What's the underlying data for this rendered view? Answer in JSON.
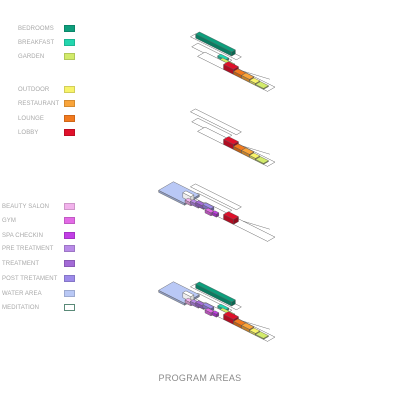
{
  "legend": [
    {
      "key": "bedrooms",
      "label": "BEDROOMS",
      "color": "#0e9e7c"
    },
    {
      "key": "breakfast",
      "label": "BREAKFAST",
      "color": "#23d6ae"
    },
    {
      "key": "garden",
      "label": "GARDEN",
      "color": "#d2eb6a"
    },
    {
      "key": "outdoor",
      "label": "OUTDOOR",
      "color": "#f7f36a"
    },
    {
      "key": "restaurant",
      "label": "RESTAURANT",
      "color": "#f9a43a"
    },
    {
      "key": "lounge",
      "label": "LOUNGE",
      "color": "#f27a1e"
    },
    {
      "key": "lobby",
      "label": "LOBBY",
      "color": "#e0112b"
    },
    {
      "key": "beauty_salon",
      "label": "BEAUTY SALON",
      "color": "#f2b2ec"
    },
    {
      "key": "gym",
      "label": "GYM",
      "color": "#e36ae6"
    },
    {
      "key": "spa_checkin",
      "label": "SPA CHECKIN",
      "color": "#c23ee6"
    },
    {
      "key": "pre_treatment",
      "label": "PRE TREATMENT",
      "color": "#b98be8"
    },
    {
      "key": "treatment",
      "label": "TREATMENT",
      "color": "#a36ad6"
    },
    {
      "key": "post_treatment",
      "label": "POST TRETAMENT",
      "color": "#9d8bea"
    },
    {
      "key": "water_area",
      "label": "WATER AREA",
      "color": "#b9c8f5"
    },
    {
      "key": "meditation",
      "label": "MEDITATION",
      "color": "#ffffff"
    }
  ],
  "title": "PROGRAM AREAS"
}
